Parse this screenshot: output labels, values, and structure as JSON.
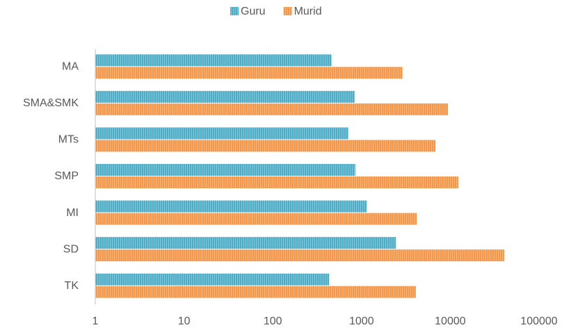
{
  "chart_data": {
    "type": "bar",
    "orientation": "horizontal",
    "categories": [
      "TK",
      "SD",
      "MI",
      "SMP",
      "MTs",
      "SMA&SMK",
      "MA"
    ],
    "series": [
      {
        "name": "Guru",
        "color": "#4bacc6",
        "values": [
          430,
          2430,
          1140,
          850,
          710,
          840,
          460
        ]
      },
      {
        "name": "Murid",
        "color": "#f79646",
        "values": [
          4100,
          40500,
          4180,
          12300,
          6800,
          9400,
          2900
        ]
      }
    ],
    "xlim": [
      1,
      100000
    ],
    "xticks": [
      1,
      10,
      100,
      1000,
      10000,
      100000
    ],
    "log_scale": true,
    "legend": "top"
  }
}
